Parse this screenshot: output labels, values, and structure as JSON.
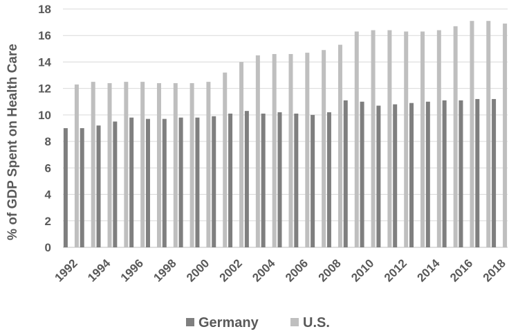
{
  "chart_data": {
    "type": "bar",
    "title": "",
    "xlabel": "",
    "ylabel": "% of GDP Spent on Health Care",
    "ylim": [
      0,
      18
    ],
    "yticks": [
      0,
      2,
      4,
      6,
      8,
      10,
      12,
      14,
      16,
      18
    ],
    "grid": true,
    "legend_position": "bottom",
    "categories": [
      "1992",
      "1993",
      "1994",
      "1995",
      "1996",
      "1997",
      "1998",
      "1999",
      "2000",
      "2001",
      "2002",
      "2003",
      "2004",
      "2005",
      "2006",
      "2007",
      "2008",
      "2009",
      "2010",
      "2011",
      "2012",
      "2013",
      "2014",
      "2015",
      "2016",
      "2017",
      "2018"
    ],
    "xtick_labels": [
      "1992",
      "1994",
      "1996",
      "1998",
      "2000",
      "2002",
      "2004",
      "2006",
      "2008",
      "2010",
      "2012",
      "2014",
      "2016",
      "2018"
    ],
    "series": [
      {
        "name": "Germany",
        "color": "#7f7f7f",
        "values": [
          9.0,
          9.0,
          9.2,
          9.5,
          9.8,
          9.7,
          9.7,
          9.8,
          9.8,
          9.9,
          10.1,
          10.3,
          10.1,
          10.2,
          10.1,
          10.0,
          10.2,
          11.1,
          11.0,
          10.7,
          10.8,
          10.9,
          11.0,
          11.1,
          11.1,
          11.2,
          11.2
        ]
      },
      {
        "name": "U.S.",
        "color": "#bfbfbf",
        "values": [
          12.3,
          12.5,
          12.4,
          12.5,
          12.5,
          12.4,
          12.4,
          12.4,
          12.5,
          13.2,
          14.0,
          14.5,
          14.6,
          14.6,
          14.7,
          14.9,
          15.3,
          16.3,
          16.4,
          16.4,
          16.3,
          16.3,
          16.4,
          16.7,
          17.1,
          17.1,
          16.9
        ]
      }
    ]
  }
}
